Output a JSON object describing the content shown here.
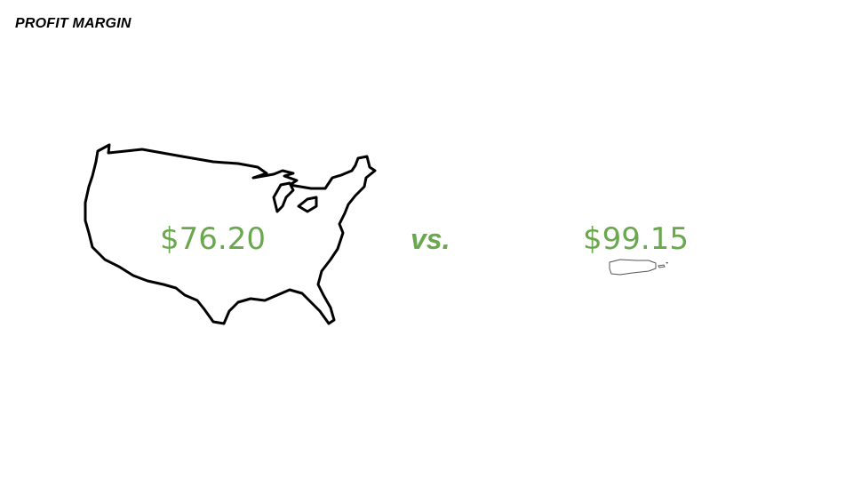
{
  "slide": {
    "title": "PROFIT MARGIN",
    "left_value": "$76.20",
    "separator": "vs.",
    "right_value": "$99.15"
  },
  "colors": {
    "accent": "#6aa84f",
    "text": "#000000",
    "background": "#ffffff"
  },
  "icons": {
    "left": "united-states-map-icon",
    "right": "puerto-rico-map-icon"
  }
}
